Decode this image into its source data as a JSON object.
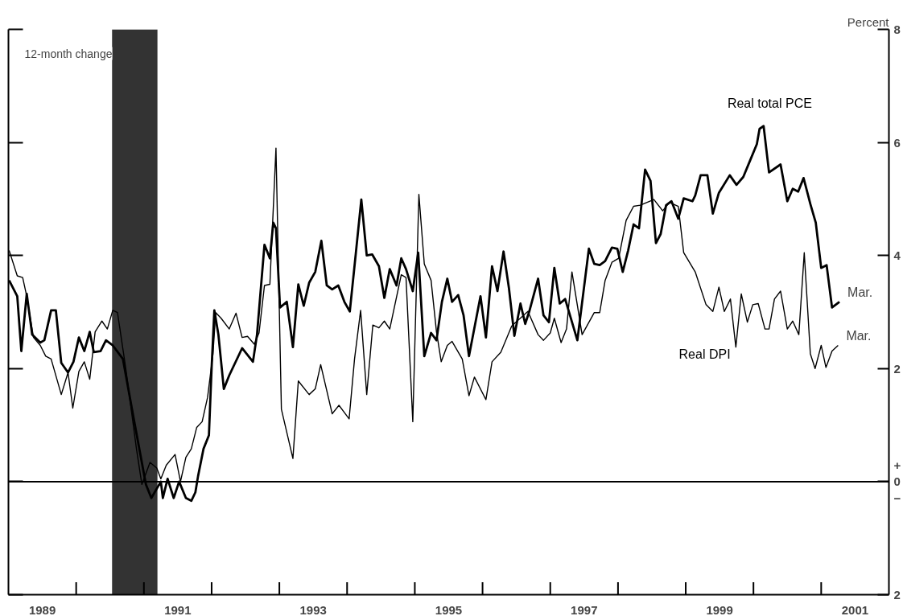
{
  "chart_data": {
    "type": "line",
    "ylabel": "Percent",
    "xlim": [
      1989,
      2002
    ],
    "ylim": [
      -2,
      8
    ],
    "xticks": [
      {
        "value": 1989.5,
        "label": "1989"
      },
      {
        "value": 1990,
        "label": null
      },
      {
        "value": 1991,
        "label": null
      },
      {
        "value": 1991.5,
        "label": "1991"
      },
      {
        "value": 1992,
        "label": null
      },
      {
        "value": 1993,
        "label": null
      },
      {
        "value": 1993.5,
        "label": "1993"
      },
      {
        "value": 1994,
        "label": null
      },
      {
        "value": 1995,
        "label": null
      },
      {
        "value": 1995.5,
        "label": "1995"
      },
      {
        "value": 1996,
        "label": null
      },
      {
        "value": 1997,
        "label": null
      },
      {
        "value": 1997.5,
        "label": "1997"
      },
      {
        "value": 1998,
        "label": null
      },
      {
        "value": 1999,
        "label": null
      },
      {
        "value": 1999.5,
        "label": "1999"
      },
      {
        "value": 2000,
        "label": null
      },
      {
        "value": 2001,
        "label": null
      },
      {
        "value": 2001.5,
        "label": "2001"
      }
    ],
    "yticks": [
      {
        "value": -2,
        "label": "2"
      },
      {
        "value": 0,
        "label": "+\n0\n−"
      },
      2,
      4,
      6,
      8
    ],
    "annotations": [
      "12-month change",
      {
        "text": "Mar.",
        "x": 2001.27,
        "y": 3.18
      },
      {
        "text": "Mar.",
        "x": 2001.25,
        "y": 2.41
      }
    ],
    "ref_lines": [
      {
        "axis": "y",
        "value": 0,
        "color": "#000000"
      }
    ],
    "bands": [
      {
        "axis": "x",
        "from": 1990.53,
        "to": 1991.2,
        "color": "#333333"
      }
    ],
    "line_style": "solid",
    "series": [
      {
        "name": "Real total PCE",
        "color": "#000000",
        "x": [
          1989.01,
          1989.13,
          1989.19,
          1989.27,
          1989.35,
          1989.47,
          1989.53,
          1989.63,
          1989.7,
          1989.78,
          1989.88,
          1989.96,
          1990.04,
          1990.12,
          1990.2,
          1990.26,
          1990.36,
          1990.44,
          1990.54,
          1990.69,
          1990.85,
          1991.03,
          1991.11,
          1991.25,
          1991.28,
          1991.35,
          1991.44,
          1991.52,
          1991.62,
          1991.7,
          1991.76,
          1991.8,
          1991.88,
          1991.96,
          1992.0,
          1992.04,
          1992.1,
          1992.18,
          1992.26,
          1992.45,
          1992.61,
          1992.67,
          1992.78,
          1992.86,
          1992.91,
          1992.95,
          1993.01,
          1993.11,
          1993.2,
          1993.28,
          1993.36,
          1993.44,
          1993.53,
          1993.62,
          1993.7,
          1993.78,
          1993.87,
          1993.96,
          1994.04,
          1994.13,
          1994.21,
          1994.29,
          1994.37,
          1994.47,
          1994.55,
          1994.63,
          1994.73,
          1994.8,
          1994.87,
          1994.97,
          1995.05,
          1995.14,
          1995.24,
          1995.32,
          1995.4,
          1995.48,
          1995.55,
          1995.64,
          1995.72,
          1995.8,
          1995.97,
          1996.05,
          1996.14,
          1996.22,
          1996.31,
          1996.39,
          1996.47,
          1996.56,
          1996.63,
          1996.69,
          1996.82,
          1996.9,
          1996.98,
          1997.06,
          1997.14,
          1997.22,
          1997.4,
          1997.57,
          1997.65,
          1997.73,
          1997.81,
          1997.91,
          1997.99,
          1998.07,
          1998.15,
          1998.23,
          1998.31,
          1998.4,
          1998.48,
          1998.56,
          1998.63,
          1998.71,
          1998.79,
          1998.89,
          1998.97,
          1999.1,
          1999.14,
          1999.22,
          1999.32,
          1999.4,
          1999.49,
          1999.65,
          1999.75,
          1999.85,
          1999.95,
          2000.05,
          2000.09,
          2000.15,
          2000.23,
          2000.4,
          2000.5,
          2000.58,
          2000.66,
          2000.74,
          2000.84,
          2000.92,
          2001.0,
          2001.08,
          2001.16,
          2001.27
        ],
        "values": [
          3.56,
          3.28,
          2.31,
          3.32,
          2.6,
          2.46,
          2.5,
          3.03,
          3.03,
          2.1,
          1.93,
          2.12,
          2.55,
          2.31,
          2.65,
          2.29,
          2.31,
          2.5,
          2.41,
          2.17,
          1.11,
          -0.05,
          -0.29,
          0.0,
          -0.29,
          0.05,
          -0.29,
          0.0,
          -0.29,
          -0.34,
          -0.19,
          0.1,
          0.58,
          0.82,
          2.02,
          3.03,
          2.6,
          1.64,
          1.88,
          2.36,
          2.12,
          2.6,
          4.19,
          3.95,
          4.58,
          4.48,
          3.08,
          3.18,
          2.38,
          3.49,
          3.11,
          3.52,
          3.71,
          4.26,
          3.47,
          3.4,
          3.47,
          3.18,
          3.01,
          4.05,
          4.99,
          4.0,
          4.02,
          3.81,
          3.25,
          3.76,
          3.47,
          3.95,
          3.76,
          3.37,
          4.05,
          2.22,
          2.63,
          2.5,
          3.18,
          3.59,
          3.18,
          3.3,
          2.94,
          2.22,
          3.28,
          2.55,
          3.81,
          3.37,
          4.07,
          3.42,
          2.58,
          3.15,
          2.79,
          3.01,
          3.59,
          2.94,
          2.82,
          3.78,
          3.15,
          3.23,
          2.5,
          4.12,
          3.85,
          3.83,
          3.9,
          4.14,
          4.12,
          3.71,
          4.09,
          4.55,
          4.48,
          5.52,
          5.32,
          4.22,
          4.38,
          4.89,
          4.96,
          4.65,
          5.01,
          4.96,
          5.06,
          5.42,
          5.42,
          4.74,
          5.11,
          5.42,
          5.25,
          5.39,
          5.68,
          5.97,
          6.24,
          6.29,
          5.47,
          5.61,
          4.96,
          5.18,
          5.13,
          5.37,
          4.91,
          4.58,
          3.78,
          3.83,
          3.08,
          3.18
        ]
      },
      {
        "name": "Real DPI",
        "color": "#000000",
        "x": [
          1989.01,
          1989.13,
          1989.21,
          1989.27,
          1989.37,
          1989.47,
          1989.55,
          1989.63,
          1989.78,
          1989.88,
          1989.95,
          1990.04,
          1990.12,
          1990.2,
          1990.28,
          1990.38,
          1990.46,
          1990.54,
          1990.61,
          1990.73,
          1990.89,
          1990.97,
          1991.09,
          1991.19,
          1991.25,
          1991.33,
          1991.46,
          1991.54,
          1991.62,
          1991.7,
          1991.78,
          1991.86,
          1991.94,
          1992.02,
          1992.06,
          1992.14,
          1992.26,
          1992.36,
          1992.45,
          1992.53,
          1992.63,
          1992.7,
          1992.78,
          1992.86,
          1992.95,
          1993.03,
          1993.2,
          1993.28,
          1993.44,
          1993.53,
          1993.61,
          1993.78,
          1993.88,
          1994.03,
          1994.11,
          1994.2,
          1994.29,
          1994.38,
          1994.47,
          1994.55,
          1994.63,
          1994.8,
          1994.87,
          1994.97,
          1995.06,
          1995.14,
          1995.24,
          1995.32,
          1995.39,
          1995.48,
          1995.55,
          1995.7,
          1995.8,
          1995.88,
          1996.05,
          1996.14,
          1996.27,
          1996.43,
          1996.51,
          1996.67,
          1996.82,
          1996.9,
          1997.0,
          1997.06,
          1997.16,
          1997.24,
          1997.32,
          1997.47,
          1997.65,
          1997.73,
          1997.81,
          1997.91,
          1998.01,
          1998.12,
          1998.23,
          1998.33,
          1998.53,
          1998.66,
          1998.76,
          1998.89,
          1998.97,
          1999.14,
          1999.3,
          1999.4,
          1999.49,
          1999.57,
          1999.66,
          1999.74,
          1999.82,
          1999.91,
          1999.99,
          2000.07,
          2000.17,
          2000.23,
          2000.31,
          2000.4,
          2000.5,
          2000.58,
          2000.67,
          2000.75,
          2000.84,
          2000.91,
          2001.0,
          2001.07,
          2001.16,
          2001.25
        ],
        "values": [
          4.09,
          3.64,
          3.61,
          3.28,
          2.55,
          2.41,
          2.22,
          2.17,
          1.54,
          1.93,
          1.3,
          1.95,
          2.12,
          1.81,
          2.65,
          2.84,
          2.7,
          3.03,
          2.99,
          2.02,
          0.58,
          -0.05,
          0.34,
          0.24,
          0.05,
          0.29,
          0.48,
          0.0,
          0.43,
          0.58,
          0.96,
          1.06,
          1.49,
          2.26,
          2.99,
          2.89,
          2.7,
          2.98,
          2.55,
          2.57,
          2.43,
          2.63,
          3.47,
          3.49,
          5.9,
          1.28,
          0.41,
          1.78,
          1.54,
          1.64,
          2.07,
          1.2,
          1.35,
          1.11,
          2.17,
          3.03,
          1.54,
          2.77,
          2.72,
          2.84,
          2.7,
          3.66,
          3.61,
          1.06,
          5.08,
          3.85,
          3.56,
          2.65,
          2.12,
          2.41,
          2.48,
          2.17,
          1.52,
          1.85,
          1.45,
          2.12,
          2.29,
          2.75,
          2.84,
          3.01,
          2.6,
          2.5,
          2.63,
          2.89,
          2.46,
          2.7,
          3.71,
          2.6,
          2.99,
          2.99,
          3.56,
          3.88,
          3.95,
          4.62,
          4.87,
          4.89,
          4.99,
          4.79,
          4.94,
          4.87,
          4.05,
          3.71,
          3.13,
          3.01,
          3.44,
          3.01,
          3.23,
          2.38,
          3.32,
          2.82,
          3.13,
          3.15,
          2.7,
          2.7,
          3.23,
          3.37,
          2.7,
          2.84,
          2.6,
          4.05,
          2.26,
          2.0,
          2.41,
          2.02,
          2.31,
          2.41
        ]
      }
    ]
  }
}
